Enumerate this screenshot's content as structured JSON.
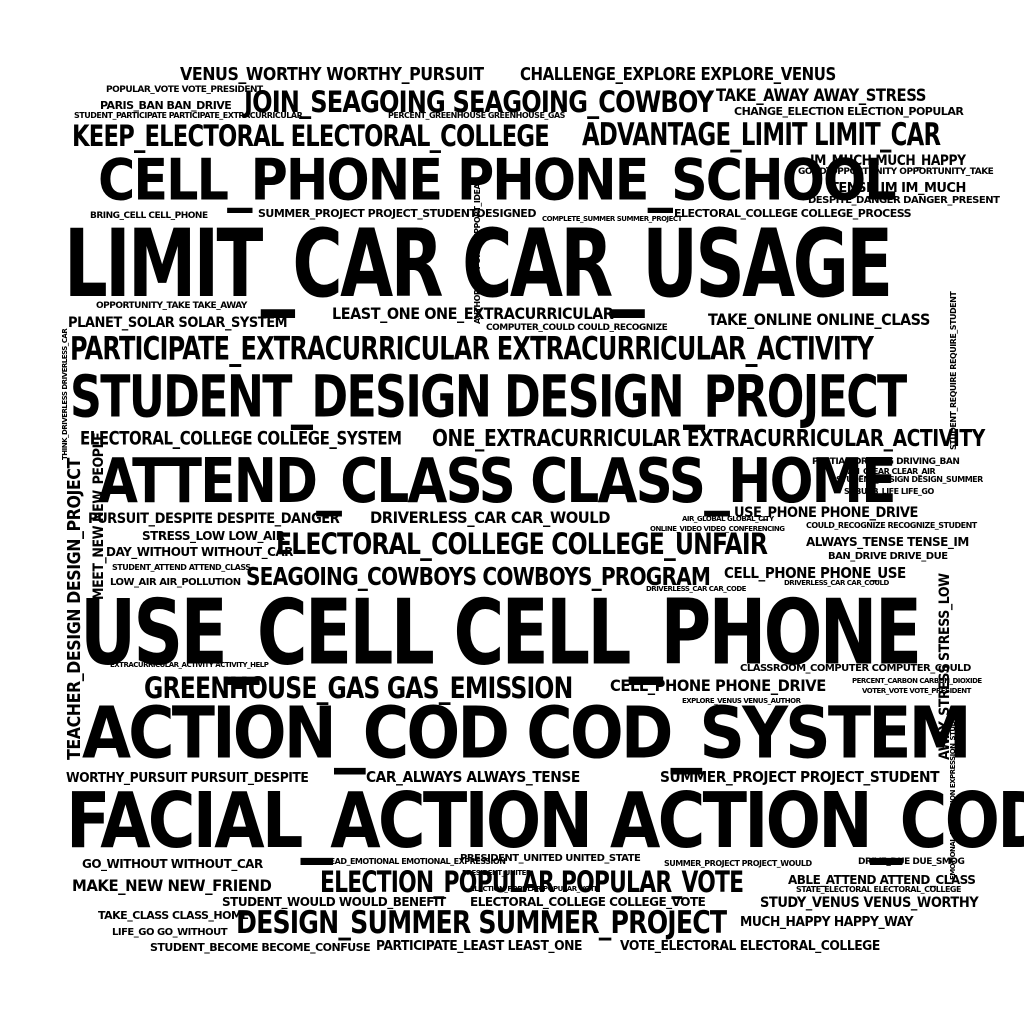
{
  "title": "word cloud",
  "ink_color": "#000000",
  "background": "#ffffff",
  "phrases": [
    "VENUS_WORTHY WORTHY_PURSUIT",
    "CHALLENGE_EXPLORE EXPLORE_VENUS",
    "JOIN_SEAGOING SEAGOING_COWBOY",
    "TAKE_AWAY AWAY_STRESS",
    "POPULAR_VOTE VOTE_PRESIDENT",
    "PARIS_BAN BAN_DRIVE",
    "CHANGE_ELECTION ELECTION_POPULAR",
    "STUDENT_PARTICIPATE PARTICIPATE_EXTRACURRICULAR",
    "PERCENT_GREENHOUSE GREENHOUSE_GAS",
    "KEEP_ELECTORAL ELECTORAL_COLLEGE",
    "ADVANTAGE_LIMIT LIMIT_CAR",
    "CELL_PHONE PHONE_SCHOOL",
    "IM_MUCH MUCH_HAPPY",
    "GOOD_OPPORTUNITY OPPORTUNITY_TAKE",
    "TENSE_IM IM_MUCH",
    "DESPITE_DANGER DANGER_PRESENT",
    "BRING_CELL CELL_PHONE",
    "SUMMER_PROJECT PROJECT_STUDENTDESIGNED",
    "COMPLETE_SUMMER SUMMER_PROJECT",
    "ELECTORAL_COLLEGE COLLEGE_PROCESS",
    "LIMIT_CAR CAR_USAGE",
    "OPPORTUNITY_TAKE TAKE_AWAY",
    "LEAST_ONE ONE_EXTRACURRICULAR",
    "PLANET_SOLAR SOLAR_SYSTEM",
    "COMPUTER_COULD COULD_RECOGNIZE",
    "TAKE_ONLINE ONLINE_CLASS",
    "PARTICIPATE_EXTRACURRICULAR EXTRACURRICULAR_ACTIVITY",
    "STUDENT_DESIGN DESIGN_PROJECT",
    "ELECTORAL_COLLEGE COLLEGE_SYSTEM",
    "ONE_EXTRACURRICULAR EXTRACURRICULAR_ACTIVITY",
    "ATTEND_CLASS CLASS_HOME",
    "PARTIAL_DRIVING DRIVING_BAN",
    "BAN_CLEAR CLEAR_AIR",
    "STUDENT_DESIGN DESIGN_SUMMER",
    "SUBURB_LIFE LIFE_GO",
    "PURSUIT_DESPITE DESPITE_DANGER",
    "DRIVERLESS_CAR CAR_WOULD",
    "USE_PHONE PHONE_DRIVE",
    "STRESS_LOW LOW_AIR",
    "COULD_RECOGNIZE RECOGNIZE_STUDENT",
    "ELECTORAL_COLLEGE COLLEGE_UNFAIR",
    "ALWAYS_TENSE TENSE_IM",
    "DAY_WITHOUT WITHOUT_CAR",
    "BAN_DRIVE DRIVE_DUE",
    "SEAGOING_COWBOYS COWBOYS_PROGRAM",
    "CELL_PHONE PHONE_USE",
    "LOW_AIR AIR_POLLUTION",
    "USE_CELL CELL_PHONE",
    "GREENHOUSE_GAS GAS_EMISSION",
    "CELL_PHONE PHONE_DRIVE",
    "CLASSROOM_COMPUTER COMPUTER_COULD",
    "ACTION_COD COD_SYSTEM",
    "WORTHY_PURSUIT PURSUIT_DESPITE",
    "CAR_ALWAYS ALWAYS_TENSE",
    "SUMMER_PROJECT PROJECT_STUDENT",
    "FACIAL_ACTION ACTION_COD",
    "GO_WITHOUT WITHOUT_CAR",
    "PRESIDENT_UNITED UNITED_STATE",
    "DRIVE_DUE DUE_SMOG",
    "MAKE_NEW NEW_FRIEND",
    "ELECTION_POPULAR POPULAR_VOTE",
    "ABLE_ATTEND ATTEND_CLASS",
    "STATE_ELECTORAL ELECTORAL_COLLEGE",
    "STUDENT_WOULD WOULD_BENEFIT",
    "ELECTORAL_COLLEGE COLLEGE_VOTE",
    "STUDY_VENUS VENUS_WORTHY",
    "TAKE_CLASS CLASS_HOME",
    "DESIGN_SUMMER SUMMER_PROJECT",
    "MUCH_HAPPY HAPPY_WAY",
    "LIFE_GO GO_WITHOUT",
    "STUDENT_BECOME BECOME_CONFUSE",
    "PARTICIPATE_LEAST LEAST_ONE",
    "VOTE_ELECTORAL ELECTORAL_COLLEGE",
    "EXTRACURRICULAR_ACTIVITY ACTIVITY_HELP",
    "PRESIDENT_UNITED",
    "ELECTION_POPULAR POPULAR_VOTE",
    "AIR_GLOBAL GLOBAL_CITY",
    "ONLINE_VIDEO VIDEO_CONFERENCING",
    "STUDENT_ATTEND ATTEND_CLASS",
    "DRIVERLESS_CAR CAR_COULD",
    "DRIVERLESS_CAR CAR_CODE",
    "VOTER_VOTE VOTE_PRESIDENT",
    "PERCENT_CARBON CARBON_DIOXIDE",
    "EXPLORE_VENUS VENUS_AUTHOR",
    "READ_EMOTIONAL EMOTIONAL_EXPRESSION",
    "SUMMER_PROJECT PROJECT_WOULD",
    "TEACHER_DESIGN DESIGN_PROJECT",
    "MEET_NEW NEW_PEOPLE",
    "AWAY_STRESS STRESS_LOW",
    "THINK_DRIVERLESS DRIVERLESS_CAR",
    "STUDENT_REQUIRE REQUIRE_STUDENT",
    "EMOTIONAL_EXPRESSION EXPRESSION_STUDENT",
    "AUTHOR_SUPPORT SUPPORT_IDEA"
  ]
}
